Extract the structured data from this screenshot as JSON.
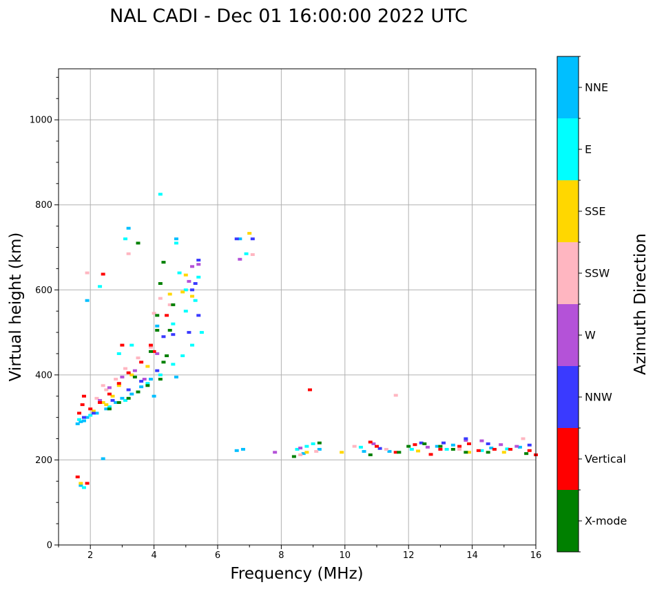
{
  "chart_data": {
    "type": "scatter",
    "title": "NAL CADI - Dec 01 16:00:00 2022 UTC",
    "xlabel": "Frequency (MHz)",
    "ylabel": "Virtual height (km)",
    "xlim": [
      1,
      16
    ],
    "ylim": [
      0,
      1120
    ],
    "xticks": [
      2,
      4,
      6,
      8,
      10,
      12,
      14,
      16
    ],
    "yticks": [
      0,
      200,
      400,
      600,
      800,
      1000
    ],
    "grid": true,
    "colorbar": {
      "label": "Azimuth Direction",
      "categories": [
        {
          "name": "X-mode",
          "color": "#008000"
        },
        {
          "name": "Vertical",
          "color": "#ff0000"
        },
        {
          "name": "NNW",
          "color": "#3a3aff"
        },
        {
          "name": "W",
          "color": "#b452d8"
        },
        {
          "name": "SSW",
          "color": "#ffb6c1"
        },
        {
          "name": "SSE",
          "color": "#ffd700"
        },
        {
          "name": "E",
          "color": "#00ffff"
        },
        {
          "name": "NNE",
          "color": "#00bfff"
        }
      ]
    },
    "series": [
      {
        "name": "NNE",
        "points": [
          [
            1.6,
            285
          ],
          [
            1.7,
            290
          ],
          [
            1.8,
            292
          ],
          [
            1.9,
            300
          ],
          [
            2.2,
            310
          ],
          [
            2.5,
            320
          ],
          [
            2.8,
            335
          ],
          [
            3.0,
            345
          ],
          [
            3.3,
            355
          ],
          [
            3.6,
            372
          ],
          [
            4.0,
            350
          ],
          [
            3.9,
            390
          ],
          [
            4.7,
            395
          ],
          [
            4.1,
            515
          ],
          [
            1.7,
            140
          ],
          [
            1.9,
            575
          ],
          [
            2.4,
            203
          ],
          [
            3.2,
            745
          ],
          [
            4.7,
            720
          ],
          [
            6.6,
            222
          ],
          [
            6.8,
            225
          ],
          [
            6.7,
            720
          ],
          [
            8.7,
            215
          ],
          [
            9.2,
            225
          ],
          [
            10.6,
            220
          ],
          [
            11.4,
            220
          ],
          [
            12.9,
            232
          ],
          [
            13.4,
            235
          ],
          [
            14.6,
            228
          ],
          [
            15.5,
            230
          ]
        ]
      },
      {
        "name": "E",
        "points": [
          [
            1.65,
            295
          ],
          [
            2.0,
            305
          ],
          [
            2.6,
            325
          ],
          [
            3.1,
            340
          ],
          [
            3.5,
            360
          ],
          [
            3.8,
            380
          ],
          [
            4.2,
            400
          ],
          [
            2.9,
            450
          ],
          [
            3.3,
            470
          ],
          [
            4.6,
            425
          ],
          [
            4.9,
            445
          ],
          [
            5.2,
            470
          ],
          [
            5.5,
            500
          ],
          [
            4.6,
            520
          ],
          [
            5.0,
            550
          ],
          [
            5.3,
            575
          ],
          [
            5.0,
            600
          ],
          [
            5.4,
            630
          ],
          [
            4.8,
            640
          ],
          [
            2.3,
            608
          ],
          [
            3.1,
            720
          ],
          [
            4.7,
            710
          ],
          [
            4.2,
            825
          ],
          [
            6.9,
            685
          ],
          [
            8.5,
            225
          ],
          [
            8.8,
            232
          ],
          [
            9.0,
            238
          ],
          [
            10.5,
            230
          ],
          [
            12.1,
            225
          ],
          [
            13.2,
            225
          ],
          [
            14.3,
            222
          ],
          [
            15.1,
            226
          ],
          [
            1.8,
            135
          ]
        ]
      },
      {
        "name": "SSE",
        "points": [
          [
            2.1,
            315
          ],
          [
            2.4,
            335
          ],
          [
            2.7,
            350
          ],
          [
            2.9,
            375
          ],
          [
            3.3,
            400
          ],
          [
            3.8,
            420
          ],
          [
            4.5,
            590
          ],
          [
            4.9,
            595
          ],
          [
            5.2,
            585
          ],
          [
            5.0,
            635
          ],
          [
            2.5,
            330
          ],
          [
            7.0,
            733
          ],
          [
            8.8,
            218
          ],
          [
            9.9,
            218
          ],
          [
            12.3,
            221
          ],
          [
            13.9,
            218
          ],
          [
            15.0,
            218
          ],
          [
            1.7,
            145
          ]
        ]
      },
      {
        "name": "SSW",
        "points": [
          [
            2.2,
            345
          ],
          [
            2.5,
            365
          ],
          [
            2.8,
            390
          ],
          [
            3.1,
            415
          ],
          [
            3.5,
            440
          ],
          [
            3.9,
            465
          ],
          [
            4.0,
            545
          ],
          [
            4.2,
            580
          ],
          [
            3.2,
            685
          ],
          [
            4.5,
            565
          ],
          [
            2.4,
            375
          ],
          [
            7.1,
            683
          ],
          [
            8.6,
            212
          ],
          [
            9.1,
            220
          ],
          [
            10.3,
            232
          ],
          [
            11.6,
            352
          ],
          [
            11.3,
            225
          ],
          [
            13.6,
            225
          ],
          [
            15.6,
            250
          ],
          [
            1.9,
            640
          ]
        ]
      },
      {
        "name": "W",
        "points": [
          [
            2.3,
            340
          ],
          [
            2.6,
            370
          ],
          [
            3.0,
            395
          ],
          [
            3.4,
            410
          ],
          [
            3.7,
            390
          ],
          [
            4.1,
            450
          ],
          [
            5.2,
            655
          ],
          [
            5.4,
            660
          ],
          [
            6.7,
            672
          ],
          [
            7.8,
            218
          ],
          [
            8.6,
            228
          ],
          [
            10.9,
            238
          ],
          [
            12.6,
            230
          ],
          [
            13.8,
            246
          ],
          [
            14.3,
            245
          ],
          [
            14.9,
            236
          ],
          [
            15.4,
            232
          ],
          [
            5.1,
            620
          ]
        ]
      },
      {
        "name": "NNW",
        "points": [
          [
            1.8,
            300
          ],
          [
            2.1,
            310
          ],
          [
            2.7,
            340
          ],
          [
            3.2,
            365
          ],
          [
            3.6,
            385
          ],
          [
            4.1,
            410
          ],
          [
            4.6,
            495
          ],
          [
            5.1,
            500
          ],
          [
            5.4,
            540
          ],
          [
            5.2,
            600
          ],
          [
            5.4,
            670
          ],
          [
            5.3,
            615
          ],
          [
            6.6,
            720
          ],
          [
            7.1,
            720
          ],
          [
            13.1,
            240
          ],
          [
            13.8,
            250
          ],
          [
            14.5,
            238
          ],
          [
            11.1,
            227
          ],
          [
            12.4,
            240
          ],
          [
            15.8,
            235
          ],
          [
            4.3,
            490
          ]
        ]
      },
      {
        "name": "Vertical",
        "points": [
          [
            1.65,
            310
          ],
          [
            1.75,
            330
          ],
          [
            1.8,
            350
          ],
          [
            2.0,
            320
          ],
          [
            2.3,
            335
          ],
          [
            2.6,
            355
          ],
          [
            2.9,
            380
          ],
          [
            3.2,
            405
          ],
          [
            3.6,
            430
          ],
          [
            4.0,
            455
          ],
          [
            3.9,
            470
          ],
          [
            4.4,
            540
          ],
          [
            2.4,
            637
          ],
          [
            3.0,
            470
          ],
          [
            1.6,
            160
          ],
          [
            1.9,
            145
          ],
          [
            8.9,
            365
          ],
          [
            10.8,
            242
          ],
          [
            11.0,
            232
          ],
          [
            11.6,
            218
          ],
          [
            12.2,
            236
          ],
          [
            12.7,
            213
          ],
          [
            13.0,
            225
          ],
          [
            13.6,
            232
          ],
          [
            13.9,
            238
          ],
          [
            14.2,
            222
          ],
          [
            14.7,
            225
          ],
          [
            15.2,
            225
          ],
          [
            15.8,
            222
          ],
          [
            16.0,
            212
          ]
        ]
      },
      {
        "name": "X-mode",
        "points": [
          [
            2.6,
            320
          ],
          [
            2.9,
            335
          ],
          [
            3.2,
            345
          ],
          [
            3.5,
            360
          ],
          [
            3.8,
            375
          ],
          [
            4.2,
            390
          ],
          [
            4.3,
            430
          ],
          [
            3.9,
            455
          ],
          [
            4.1,
            505
          ],
          [
            4.5,
            505
          ],
          [
            4.6,
            565
          ],
          [
            3.5,
            710
          ],
          [
            4.2,
            615
          ],
          [
            4.3,
            665
          ],
          [
            8.4,
            208
          ],
          [
            9.2,
            240
          ],
          [
            10.8,
            212
          ],
          [
            11.7,
            218
          ],
          [
            12.0,
            232
          ],
          [
            12.5,
            238
          ],
          [
            13.0,
            232
          ],
          [
            13.4,
            225
          ],
          [
            13.8,
            218
          ],
          [
            14.5,
            218
          ],
          [
            15.7,
            215
          ],
          [
            4.1,
            540
          ],
          [
            4.4,
            445
          ],
          [
            3.4,
            395
          ]
        ]
      }
    ]
  }
}
